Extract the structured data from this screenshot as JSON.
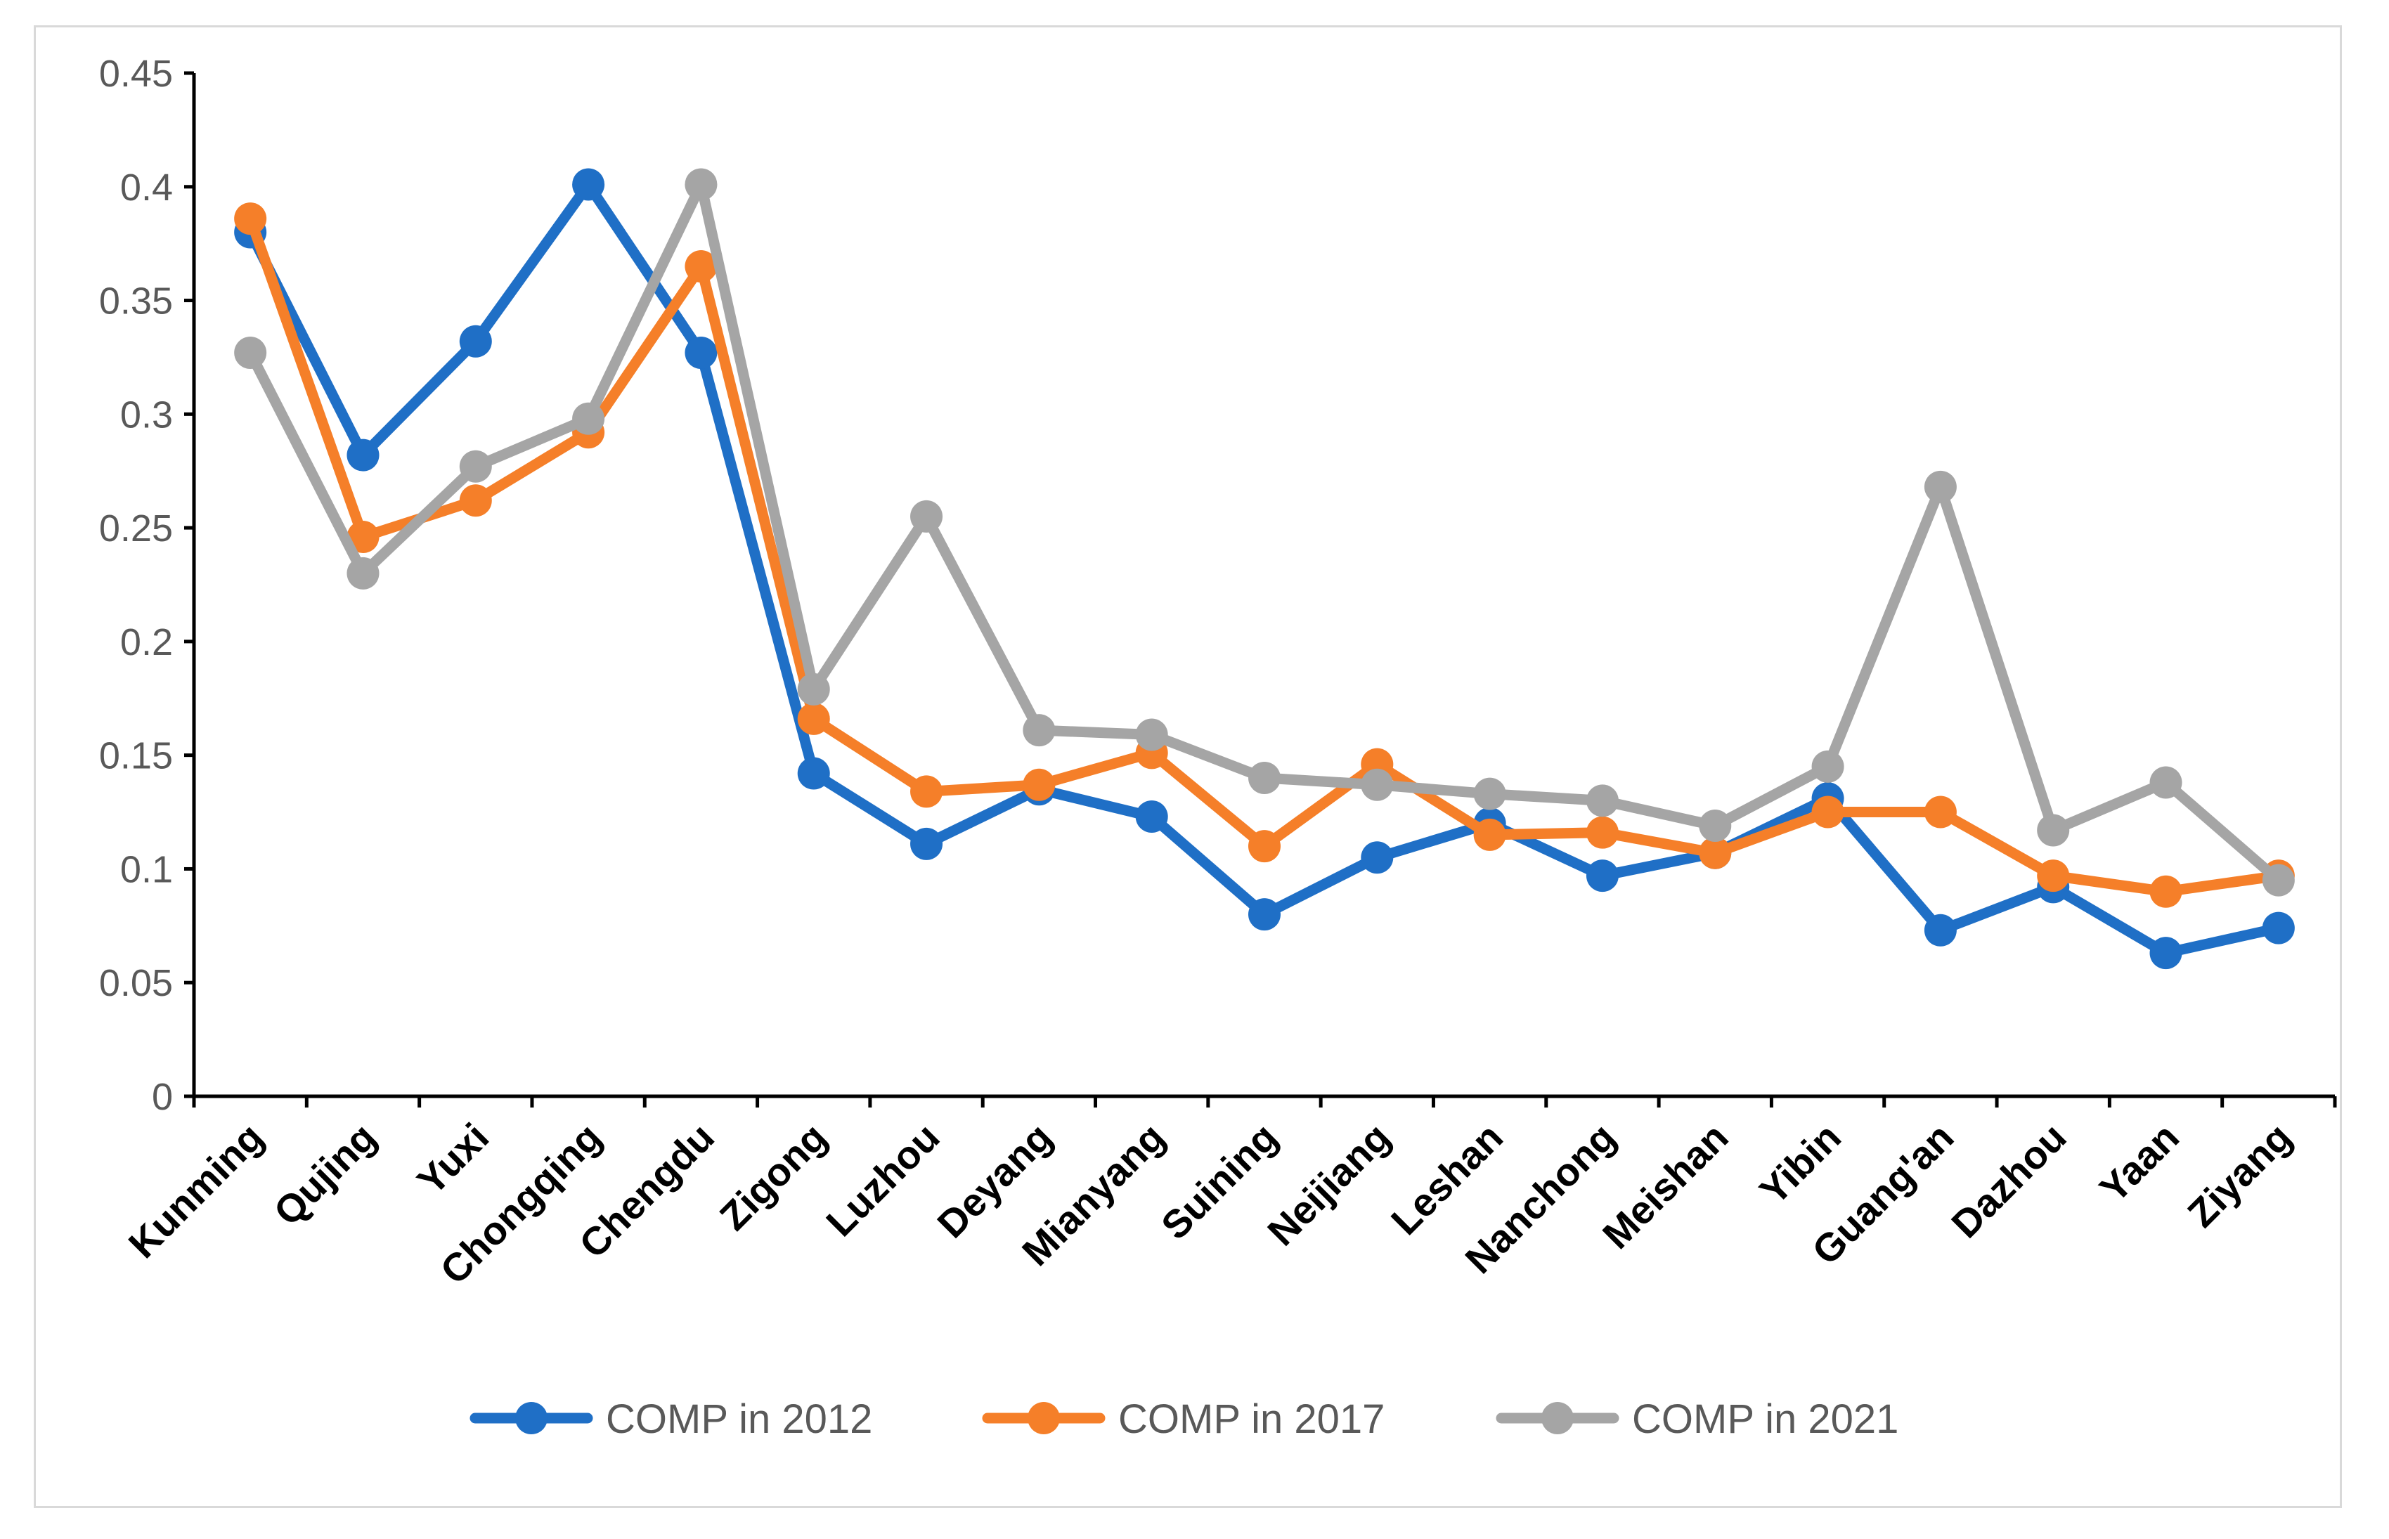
{
  "chart_data": {
    "type": "line",
    "title": "",
    "xlabel": "",
    "ylabel": "",
    "ylim": [
      0,
      0.45
    ],
    "yticks": [
      "0",
      "0.05",
      "0.1",
      "0.15",
      "0.2",
      "0.25",
      "0.3",
      "0.35",
      "0.4",
      "0.45"
    ],
    "grid": false,
    "legend_position": "bottom",
    "categories": [
      "Kunming",
      "Qujing",
      "Yuxi",
      "Chongqing",
      "Chengdu",
      "Zigong",
      "Luzhou",
      "Deyang",
      "Mianyang",
      "Suining",
      "Neijiang",
      "Leshan",
      "Nanchong",
      "Meishan",
      "Yibin",
      "Guang'an",
      "Dazhou",
      "Yaan",
      "Ziyang"
    ],
    "series": [
      {
        "name": "COMP in 2012",
        "color": "#1f6fc6",
        "values": [
          0.38,
          0.282,
          0.332,
          0.401,
          0.327,
          0.142,
          0.111,
          0.135,
          0.123,
          0.08,
          0.105,
          0.12,
          0.097,
          0.107,
          0.131,
          0.073,
          0.092,
          0.063,
          0.074
        ]
      },
      {
        "name": "COMP in 2017",
        "color": "#f57f29",
        "values": [
          0.386,
          0.246,
          0.262,
          0.292,
          0.365,
          0.166,
          0.134,
          0.137,
          0.151,
          0.11,
          0.146,
          0.115,
          0.116,
          0.107,
          0.125,
          0.125,
          0.097,
          0.09,
          0.097
        ]
      },
      {
        "name": "COMP in 2021",
        "color": "#a5a5a5",
        "values": [
          0.327,
          0.23,
          0.277,
          0.298,
          0.401,
          0.179,
          0.255,
          0.161,
          0.159,
          0.14,
          0.137,
          0.133,
          0.13,
          0.119,
          0.145,
          0.268,
          0.117,
          0.138,
          0.095
        ]
      }
    ]
  }
}
